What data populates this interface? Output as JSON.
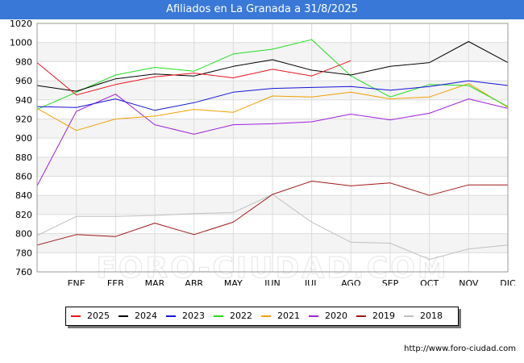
{
  "title": "Afiliados en La Granada a 31/8/2025",
  "source": "http://www.foro-ciudad.com",
  "watermark": "FORO-CIUDAD.COM",
  "chart_data": {
    "type": "line",
    "title": "Afiliados en La Granada a 31/8/2025",
    "xlabel": "",
    "ylabel": "",
    "categories": [
      "",
      "ENE",
      "FEB",
      "MAR",
      "ABR",
      "MAY",
      "JUN",
      "JUL",
      "AGO",
      "SEP",
      "OCT",
      "NOV",
      "DIC"
    ],
    "ylim": [
      760,
      1020
    ],
    "yticks": [
      760,
      780,
      800,
      820,
      840,
      860,
      880,
      900,
      920,
      940,
      960,
      980,
      1000,
      1020
    ],
    "grid": true,
    "legend_position": "bottom",
    "series": [
      {
        "name": "2025",
        "color": "#e8141c",
        "values": [
          979,
          945,
          956,
          964,
          968,
          963,
          972,
          965,
          981,
          null,
          null,
          null,
          null
        ]
      },
      {
        "name": "2024",
        "color": "#000000",
        "values": [
          955,
          949,
          962,
          967,
          965,
          975,
          982,
          971,
          966,
          975,
          979,
          1001,
          979
        ]
      },
      {
        "name": "2023",
        "color": "#1414d8",
        "values": [
          933,
          932,
          941,
          929,
          937,
          948,
          952,
          953,
          954,
          950,
          954,
          960,
          955
        ]
      },
      {
        "name": "2022",
        "color": "#22dd22",
        "values": [
          930,
          948,
          966,
          974,
          970,
          988,
          993,
          1003,
          965,
          943,
          956,
          955,
          933
        ]
      },
      {
        "name": "2021",
        "color": "#f0a000",
        "values": [
          931,
          908,
          920,
          923,
          930,
          927,
          944,
          943,
          948,
          941,
          943,
          957,
          932
        ]
      },
      {
        "name": "2020",
        "color": "#a020e0",
        "values": [
          850,
          928,
          946,
          914,
          904,
          914,
          915,
          917,
          925,
          919,
          926,
          941,
          931
        ]
      },
      {
        "name": "2019",
        "color": "#a01818",
        "values": [
          788,
          799,
          797,
          811,
          799,
          812,
          841,
          855,
          850,
          853,
          840,
          851,
          851
        ]
      },
      {
        "name": "2018",
        "color": "#c0c0c0",
        "values": [
          798,
          818,
          818,
          819,
          821,
          822,
          841,
          812,
          791,
          790,
          773,
          784,
          788
        ]
      }
    ]
  }
}
